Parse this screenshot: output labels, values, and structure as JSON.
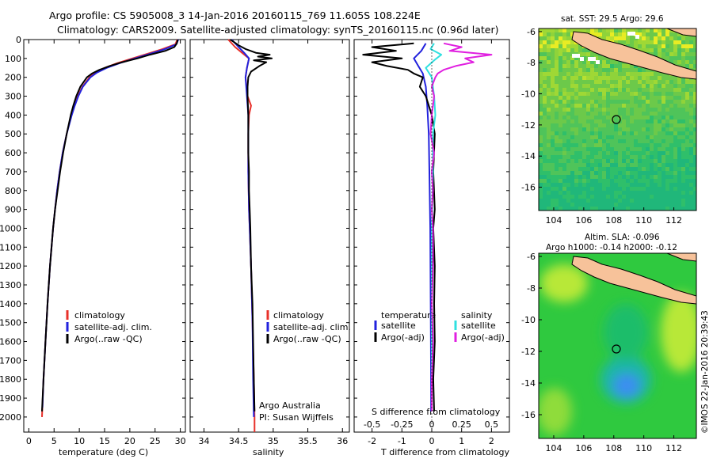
{
  "title": {
    "line1": "Argo profile: CS 5905008_3 14-Jan-2016 20160115_769 11.605S 108.224E",
    "line2": "Climatology: CARS2009. Satellite-adjusted climatology: synTS_20160115.nc (0.96d later)"
  },
  "side_label": "©IMOS 22-Jan-2016 20:39:43",
  "colors": {
    "climatology": "#e8302a",
    "satellite": "#2222dd",
    "argo": "#000000",
    "satellite_salinity": "#30e0e0",
    "argo_salinity": "#e020e0"
  },
  "chart_data": [
    {
      "type": "line",
      "panel": "temperature",
      "xlabel": "temperature (deg C)",
      "ylabel": "",
      "xlim": [
        -1,
        31
      ],
      "ylim": [
        2080,
        0
      ],
      "xticks": [
        0,
        5,
        10,
        15,
        20,
        25,
        30
      ],
      "yticks": [
        0,
        100,
        200,
        300,
        400,
        500,
        600,
        700,
        800,
        900,
        1000,
        1100,
        1200,
        1300,
        1400,
        1500,
        1600,
        1700,
        1800,
        1900,
        2000
      ],
      "legend": [
        "climatology",
        "satellite-adj. clim.",
        "Argo(..raw -QC)"
      ],
      "series": [
        {
          "name": "climatology",
          "color": "#e8302a",
          "depth": [
            0,
            25,
            50,
            75,
            100,
            125,
            150,
            175,
            200,
            250,
            300,
            350,
            400,
            500,
            600,
            700,
            800,
            900,
            1000,
            1200,
            1400,
            1600,
            1800,
            2000
          ],
          "values": [
            29.4,
            29.0,
            26.5,
            23.5,
            20.5,
            17.5,
            15.0,
            13.2,
            12.0,
            10.6,
            9.7,
            9.0,
            8.4,
            7.5,
            6.7,
            6.1,
            5.6,
            5.2,
            4.8,
            4.2,
            3.7,
            3.3,
            2.9,
            2.6
          ]
        },
        {
          "name": "satellite-adj. clim.",
          "color": "#2222dd",
          "depth": [
            0,
            25,
            50,
            75,
            100,
            125,
            150,
            175,
            200,
            250,
            300,
            350,
            400,
            500,
            600,
            700,
            800,
            900,
            1000,
            1200,
            1400,
            1600,
            1800,
            1950
          ],
          "values": [
            29.6,
            29.2,
            27.0,
            24.0,
            21.0,
            18.0,
            15.4,
            13.5,
            12.2,
            10.7,
            9.8,
            9.1,
            8.5,
            7.5,
            6.7,
            6.1,
            5.6,
            5.2,
            4.8,
            4.2,
            3.7,
            3.3,
            2.9,
            2.7
          ]
        },
        {
          "name": "Argo(..raw -QC)",
          "color": "#000000",
          "depth": [
            0,
            20,
            40,
            60,
            80,
            100,
            120,
            140,
            160,
            180,
            200,
            250,
            300,
            350,
            400,
            500,
            600,
            700,
            800,
            900,
            1000,
            1200,
            1400,
            1600,
            1800,
            1970
          ],
          "values": [
            29.5,
            29.3,
            28.8,
            27.0,
            24.0,
            21.5,
            18.5,
            16.0,
            14.0,
            12.5,
            11.5,
            10.2,
            9.4,
            8.8,
            8.3,
            7.5,
            6.8,
            6.2,
            5.7,
            5.2,
            4.8,
            4.2,
            3.7,
            3.3,
            2.9,
            2.6
          ]
        }
      ]
    },
    {
      "type": "line",
      "panel": "salinity",
      "xlabel": "salinity",
      "ylabel": "",
      "xlim": [
        33.8,
        36.1
      ],
      "ylim": [
        2080,
        0
      ],
      "xticks": [
        34,
        34.5,
        35,
        35.5,
        36
      ],
      "legend": [
        "climatology",
        "satellite-adj. clim.",
        "Argo(..raw -QC)"
      ],
      "annotation": [
        "Argo Australia",
        "PI: Susan Wijffels"
      ],
      "series": [
        {
          "name": "climatology",
          "color": "#e8302a",
          "depth": [
            0,
            40,
            70,
            100,
            150,
            200,
            300,
            350,
            400,
            500,
            700,
            900,
            1000,
            1200,
            1500,
            1800,
            2000,
            2080
          ],
          "values": [
            34.35,
            34.45,
            34.55,
            34.65,
            34.62,
            34.6,
            34.63,
            34.68,
            34.65,
            34.64,
            34.64,
            34.65,
            34.66,
            34.68,
            34.7,
            34.72,
            34.73,
            34.73
          ]
        },
        {
          "name": "satellite-adj. clim.",
          "color": "#2222dd",
          "depth": [
            0,
            40,
            70,
            100,
            150,
            200,
            300,
            400,
            500,
            700,
            900,
            1000,
            1200,
            1500,
            1800,
            2000
          ],
          "values": [
            34.4,
            34.5,
            34.58,
            34.65,
            34.62,
            34.6,
            34.62,
            34.64,
            34.64,
            34.64,
            34.65,
            34.66,
            34.68,
            34.7,
            34.71,
            34.72
          ]
        },
        {
          "name": "Argo(..raw -QC)",
          "color": "#000000",
          "depth": [
            0,
            30,
            50,
            70,
            80,
            90,
            100,
            110,
            120,
            140,
            170,
            200,
            250,
            300,
            400,
            500,
            600,
            700,
            800,
            900,
            1000,
            1200,
            1400,
            1600,
            1800,
            1970
          ],
          "values": [
            34.38,
            34.5,
            34.6,
            34.75,
            34.95,
            34.78,
            34.98,
            34.72,
            34.9,
            34.8,
            34.68,
            34.64,
            34.63,
            34.63,
            34.64,
            34.64,
            34.64,
            34.65,
            34.65,
            34.66,
            34.67,
            34.68,
            34.7,
            34.71,
            34.72,
            34.73
          ]
        }
      ]
    },
    {
      "type": "line",
      "panel": "difference",
      "xlabel": "T difference from climatology",
      "xlabel_top": "S difference from climatology",
      "xlim": [
        -2.6,
        2.6
      ],
      "ylim": [
        2080,
        0
      ],
      "xticks": [
        -2,
        -1,
        0,
        1,
        2
      ],
      "xticks_salinity": [
        -0.5,
        -0.25,
        0,
        0.25,
        0.5
      ],
      "legend": {
        "temperature_heading": "temperature",
        "salinity_heading": "salinity",
        "items": [
          "satellite",
          "Argo(-adj)",
          "satellite",
          "Argo(-adj)"
        ]
      },
      "series": [
        {
          "name": "temperature satellite",
          "color": "#2222dd",
          "depth": [
            20,
            60,
            100,
            140,
            180,
            250,
            350,
            500,
            700,
            1000,
            1300,
            1600,
            1900,
            1970
          ],
          "values": [
            -0.2,
            -0.35,
            -0.6,
            -0.45,
            -0.3,
            -0.2,
            -0.15,
            -0.1,
            -0.08,
            -0.05,
            -0.04,
            -0.03,
            -0.02,
            -0.02
          ]
        },
        {
          "name": "temperature Argo(-adj)",
          "color": "#000000",
          "depth": [
            20,
            40,
            60,
            80,
            100,
            120,
            140,
            160,
            180,
            200,
            250,
            300,
            400,
            500,
            700,
            900,
            1000,
            1200,
            1400,
            1600,
            1800,
            1970
          ],
          "values": [
            -0.6,
            -2.0,
            -1.2,
            -2.3,
            -1.0,
            -2.0,
            -1.5,
            -0.8,
            -0.6,
            -0.3,
            -0.4,
            -0.2,
            0.0,
            0.1,
            0.05,
            0.1,
            0.05,
            0.1,
            0.08,
            0.1,
            0.05,
            0.08
          ]
        },
        {
          "name": "salinity satellite",
          "color": "#30e0e0",
          "depth": [
            20,
            50,
            80,
            110,
            150,
            200,
            300,
            400,
            500,
            700,
            1000,
            1300,
            1600,
            1900,
            1970
          ],
          "values": [
            0.02,
            -0.01,
            0.08,
            0.02,
            -0.05,
            0.0,
            0.02,
            0.03,
            0.01,
            0.01,
            0.0,
            0.0,
            0.0,
            0.0,
            0.0
          ]
        },
        {
          "name": "salinity Argo(-adj)",
          "color": "#e020e0",
          "depth": [
            20,
            40,
            60,
            80,
            100,
            120,
            140,
            160,
            180,
            200,
            250,
            300,
            400,
            500,
            600,
            700,
            800,
            900,
            1000,
            1200,
            1400,
            1600,
            1800,
            1970
          ],
          "values": [
            0.1,
            0.25,
            0.15,
            0.5,
            0.28,
            0.35,
            0.2,
            0.1,
            0.05,
            0.03,
            0.0,
            0.02,
            0.0,
            -0.01,
            0.02,
            0.0,
            0.01,
            0.0,
            0.01,
            0.01,
            0.0,
            0.01,
            0.0,
            0.0
          ]
        }
      ]
    },
    {
      "type": "heatmap",
      "panel": "sst_map",
      "title": "sat. SST: 29.5 Argo: 29.6",
      "xlim": [
        103,
        113.5
      ],
      "ylim": [
        -17.5,
        -5.8
      ],
      "xticks": [
        104,
        106,
        108,
        110,
        112
      ],
      "yticks": [
        -6,
        -8,
        -10,
        -12,
        -14,
        -16
      ],
      "marker": {
        "lon": 108.224,
        "lat": -11.605
      }
    },
    {
      "type": "heatmap",
      "panel": "sla_map",
      "title_line1": "Altim. SLA: -0.096",
      "title_line2": "Argo h1000: -0.14 h2000: -0.12",
      "xlim": [
        103,
        113.5
      ],
      "ylim": [
        -17.5,
        -5.8
      ],
      "xticks": [
        104,
        106,
        108,
        110,
        112
      ],
      "yticks": [
        -6,
        -8,
        -10,
        -12,
        -14,
        -16
      ],
      "marker": {
        "lon": 108.224,
        "lat": -11.605
      }
    }
  ]
}
